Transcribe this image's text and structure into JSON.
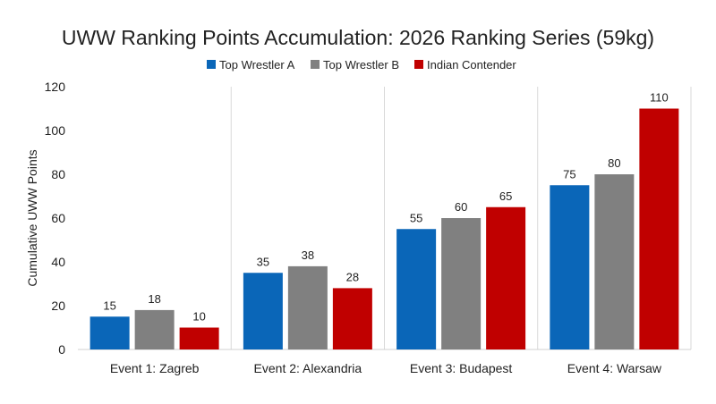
{
  "chart_data": {
    "type": "bar",
    "title": "UWW Ranking Points Accumulation: 2026 Ranking Series (59kg)",
    "xlabel": "",
    "ylabel": "Cumulative UWW Points",
    "categories": [
      "Event 1: Zagreb",
      "Event 2: Alexandria",
      "Event 3: Budapest",
      "Event 4: Warsaw"
    ],
    "series": [
      {
        "name": "Top Wrestler A",
        "color": "#0a66b8",
        "values": [
          15,
          35,
          55,
          75
        ]
      },
      {
        "name": "Top Wrestler B",
        "color": "#808080",
        "values": [
          18,
          38,
          60,
          80
        ]
      },
      {
        "name": "Indian Contender",
        "color": "#c00000",
        "values": [
          10,
          28,
          65,
          110
        ]
      }
    ],
    "ylim": [
      0,
      120
    ],
    "yticks": [
      0,
      20,
      40,
      60,
      80,
      100,
      120
    ],
    "grid": "vertical category separators",
    "legend": "top-center"
  }
}
